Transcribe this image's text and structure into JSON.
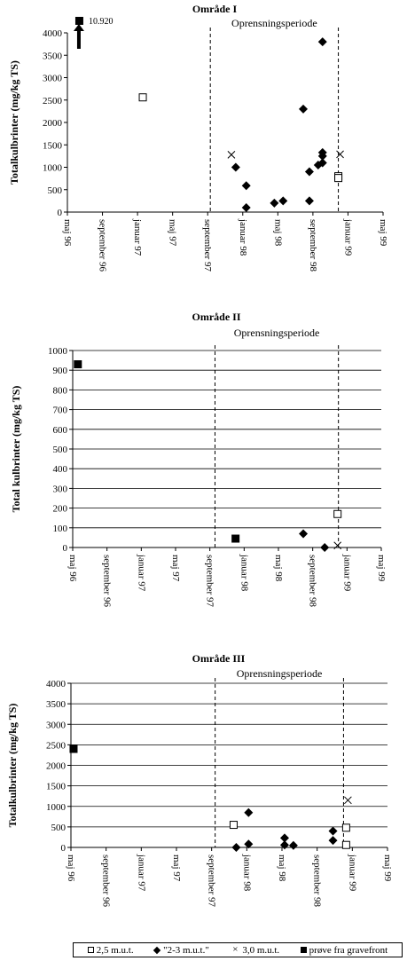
{
  "chart_data": [
    {
      "type": "scatter",
      "title": "Område I",
      "period_label": "Oprensningsperiode",
      "ylabel": "Totalkulbrinter (mg/kg TS)",
      "xlabel": "",
      "ylim": [
        0,
        4000
      ],
      "yticks": [
        0,
        500,
        1000,
        1500,
        2000,
        2500,
        3000,
        3500,
        4000
      ],
      "xticks": [
        "maj 96",
        "september 96",
        "januar 97",
        "maj 97",
        "september 97",
        "januar 98",
        "maj 98",
        "september 98",
        "januar 99",
        "maj 99"
      ],
      "period_months": [
        16.3,
        30.9
      ],
      "grid": false,
      "arrow_annotation": {
        "label": "10.920",
        "x_month": 0.4
      },
      "series": [
        {
          "name": "2,5 m.u.t.",
          "marker": "open-square",
          "points": [
            [
              8.6,
              2560
            ],
            [
              30.9,
              800
            ],
            [
              30.9,
              760
            ]
          ]
        },
        {
          "name": "\"2-3 m.u.t.\"",
          "marker": "diamond",
          "points": [
            [
              19.2,
              1000
            ],
            [
              20.4,
              590
            ],
            [
              20.4,
              100
            ],
            [
              23.6,
              200
            ],
            [
              24.6,
              250
            ],
            [
              26.9,
              2300
            ],
            [
              27.6,
              250
            ],
            [
              27.6,
              900
            ],
            [
              28.6,
              1050
            ],
            [
              29.1,
              1100
            ],
            [
              29.1,
              1250
            ],
            [
              29.1,
              1330
            ],
            [
              29.1,
              3800
            ]
          ]
        },
        {
          "name": "3,0 m.u.t.",
          "marker": "x",
          "points": [
            [
              18.7,
              1280
            ],
            [
              31.1,
              1290
            ]
          ]
        },
        {
          "name": "prøve fra gravefront",
          "marker": "filled-square",
          "points": []
        }
      ]
    },
    {
      "type": "scatter",
      "title": "Område II",
      "period_label": "Oprensningsperiode",
      "ylabel": "Total kulbrinter (mg/kg TS)",
      "xlabel": "",
      "ylim": [
        0,
        1000
      ],
      "yticks": [
        0,
        100,
        200,
        300,
        400,
        500,
        600,
        700,
        800,
        900,
        1000
      ],
      "xticks": [
        "maj 96",
        "september 96",
        "januar 97",
        "maj 97",
        "september 97",
        "januar 98",
        "maj 98",
        "september 98",
        "januar 99",
        "maj 99"
      ],
      "period_months": [
        16.6,
        31.0
      ],
      "grid": true,
      "series": [
        {
          "name": "2,5 m.u.t.",
          "marker": "open-square",
          "points": [
            [
              30.9,
              170
            ]
          ]
        },
        {
          "name": "\"2-3 m.u.t.\"",
          "marker": "diamond",
          "points": [
            [
              26.9,
              70
            ],
            [
              29.4,
              0
            ]
          ]
        },
        {
          "name": "3,0 m.u.t.",
          "marker": "x",
          "points": [
            [
              30.9,
              10
            ]
          ]
        },
        {
          "name": "prøve fra gravefront",
          "marker": "filled-square",
          "points": [
            [
              0.6,
              930
            ],
            [
              19.0,
              45
            ]
          ]
        }
      ]
    },
    {
      "type": "scatter",
      "title": "Område III",
      "period_label": "Oprensningsperiode",
      "ylabel": "Totalkulbrinter (mg/kg TS)",
      "xlabel": "",
      "ylim": [
        0,
        4000
      ],
      "yticks": [
        0,
        500,
        1000,
        1500,
        2000,
        2500,
        3000,
        3500,
        4000
      ],
      "xticks": [
        "maj 96",
        "september 96",
        "januar 97",
        "maj 97",
        "september 97",
        "januar 98",
        "maj 98",
        "september 98",
        "januar 99",
        "maj 99"
      ],
      "period_months": [
        16.4,
        31.0
      ],
      "grid": true,
      "series": [
        {
          "name": "2,5 m.u.t.",
          "marker": "open-square",
          "points": [
            [
              18.5,
              550
            ],
            [
              31.3,
              480
            ],
            [
              31.3,
              60
            ]
          ]
        },
        {
          "name": "\"2-3 m.u.t.\"",
          "marker": "diamond",
          "points": [
            [
              18.8,
              0
            ],
            [
              20.2,
              850
            ],
            [
              20.2,
              80
            ],
            [
              24.3,
              230
            ],
            [
              24.3,
              60
            ],
            [
              25.3,
              50
            ],
            [
              29.8,
              400
            ],
            [
              29.8,
              170
            ]
          ]
        },
        {
          "name": "3,0 m.u.t.",
          "marker": "x",
          "points": [
            [
              31.5,
              1150
            ]
          ]
        },
        {
          "name": "prøve fra gravefront",
          "marker": "filled-square",
          "points": [
            [
              0.3,
              2400
            ]
          ]
        }
      ]
    }
  ],
  "legend": {
    "items": [
      {
        "symbol": "open-square",
        "label": "2,5 m.u.t."
      },
      {
        "symbol": "diamond",
        "label": "\"2-3 m.u.t.\""
      },
      {
        "symbol": "x",
        "label": "3,0 m.u.t."
      },
      {
        "symbol": "filled-square",
        "label": "prøve fra gravefront"
      }
    ]
  }
}
